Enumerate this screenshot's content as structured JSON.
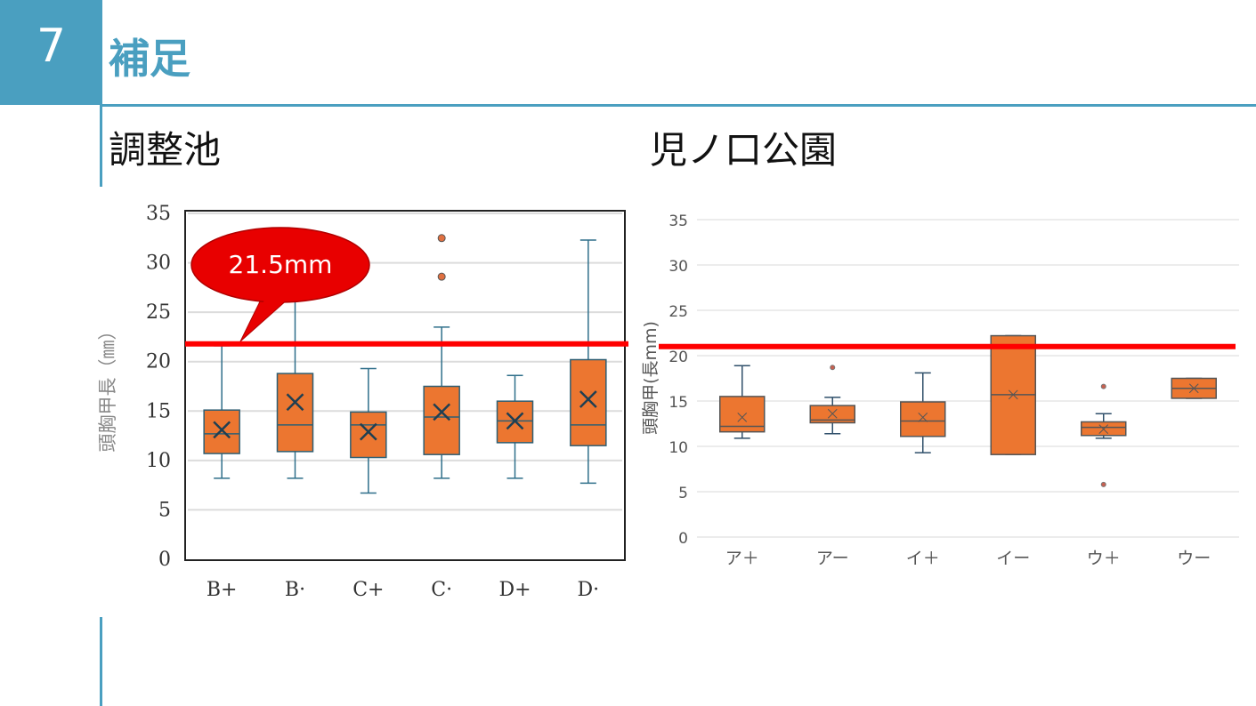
{
  "header": {
    "number": "7",
    "title": "補足"
  },
  "callout": {
    "label": "21.5mm"
  },
  "chart_data": [
    {
      "type": "box",
      "title": "調整池",
      "ylabel": "頭胸甲長（㎜）",
      "xlabel": "",
      "ylim": [
        0,
        35
      ],
      "yticks": [
        "0",
        "5",
        "10",
        "15",
        "20",
        "25",
        "30",
        "35"
      ],
      "grid": true,
      "threshold": 21.8,
      "categories": [
        "B+",
        "B·",
        "C+",
        "C·",
        "D+",
        "D·"
      ],
      "boxes": [
        {
          "min": 8.2,
          "q1": 10.7,
          "median": 12.7,
          "q3": 15.1,
          "max": 21.6,
          "mean": 13.1,
          "outliers": []
        },
        {
          "min": 8.2,
          "q1": 10.9,
          "median": 13.6,
          "q3": 18.8,
          "max": 30.4,
          "mean": 15.9,
          "outliers": [
            31.0
          ]
        },
        {
          "min": 6.7,
          "q1": 10.3,
          "median": 13.6,
          "q3": 14.9,
          "max": 19.3,
          "mean": 12.9,
          "outliers": []
        },
        {
          "min": 8.2,
          "q1": 10.6,
          "median": 14.4,
          "q3": 17.5,
          "max": 23.5,
          "mean": 14.9,
          "outliers": [
            32.5,
            28.6
          ]
        },
        {
          "min": 8.2,
          "q1": 11.8,
          "median": 14.0,
          "q3": 16.0,
          "max": 18.6,
          "mean": 14.0,
          "outliers": []
        },
        {
          "min": 7.7,
          "q1": 11.5,
          "median": 13.6,
          "q3": 20.2,
          "max": 32.3,
          "mean": 16.2,
          "outliers": []
        }
      ]
    },
    {
      "type": "box",
      "title": "児ノ口公園",
      "ylabel": "頭胸甲(長mm)",
      "xlabel": "",
      "ylim": [
        0,
        35
      ],
      "yticks": [
        "0",
        "5",
        "10",
        "15",
        "20",
        "25",
        "30",
        "35"
      ],
      "grid": true,
      "threshold": 21.0,
      "categories": [
        "ア＋",
        "アー",
        "イ＋",
        "イー",
        "ウ＋",
        "ウー"
      ],
      "boxes": [
        {
          "min": 10.9,
          "q1": 11.6,
          "median": 12.2,
          "q3": 15.5,
          "max": 18.9,
          "mean": 13.2,
          "outliers": []
        },
        {
          "min": 11.4,
          "q1": 12.6,
          "median": 12.9,
          "q3": 14.5,
          "max": 15.4,
          "mean": 13.6,
          "outliers": [
            18.7
          ]
        },
        {
          "min": 9.3,
          "q1": 11.1,
          "median": 12.8,
          "q3": 14.9,
          "max": 18.1,
          "mean": 13.2,
          "outliers": []
        },
        {
          "min": 9.1,
          "q1": 9.1,
          "median": 15.7,
          "q3": 22.2,
          "max": 22.2,
          "mean": 15.7,
          "outliers": []
        },
        {
          "min": 10.9,
          "q1": 11.2,
          "median": 12.1,
          "q3": 12.7,
          "max": 13.6,
          "mean": 11.9,
          "outliers": [
            16.6,
            5.8
          ]
        },
        {
          "min": 15.3,
          "q1": 15.3,
          "median": 16.4,
          "q3": 17.5,
          "max": 17.5,
          "mean": 16.4,
          "outliers": []
        }
      ]
    }
  ],
  "colors": {
    "accent": "#4a9fc0",
    "box": "#ec7630",
    "threshold": "#ff0000",
    "callout": "#e80000"
  }
}
